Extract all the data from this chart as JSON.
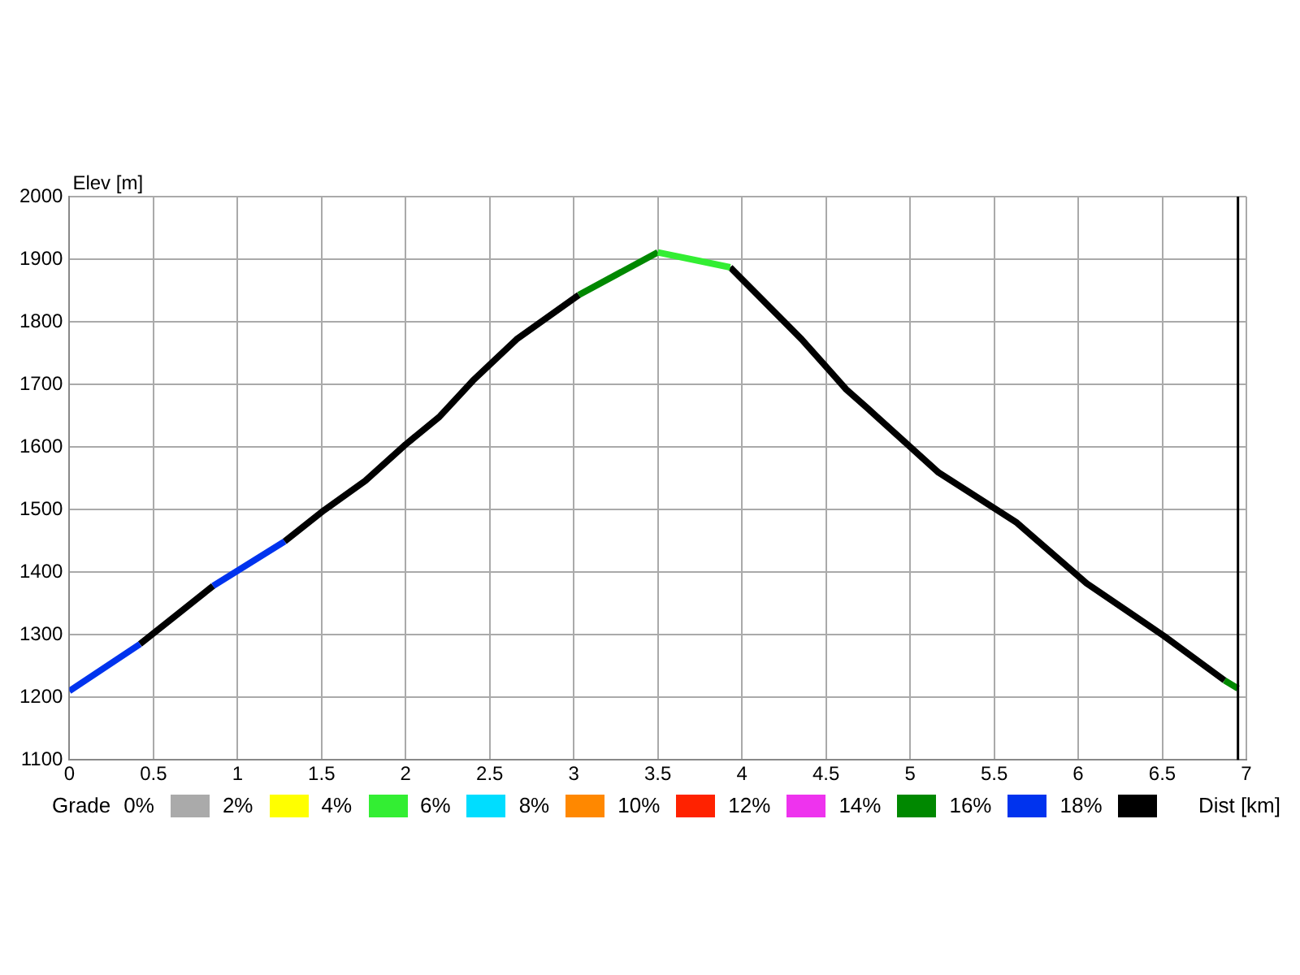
{
  "chart_data": {
    "type": "line",
    "xlabel": "Dist [km]",
    "ylabel": "Elev [m]",
    "legend_title": "Grade",
    "xlim": [
      0,
      7
    ],
    "xticks": [
      0,
      0.5,
      1,
      1.5,
      2,
      2.5,
      3,
      3.5,
      4,
      4.5,
      5,
      5.5,
      6,
      6.5,
      7
    ],
    "ylim": [
      1100,
      2000
    ],
    "yticks": [
      1100,
      1200,
      1300,
      1400,
      1500,
      1600,
      1700,
      1800,
      1900,
      2000
    ],
    "grid": true,
    "legend": "bottom",
    "marker": "none",
    "line_style": "solid",
    "ref_lines": [
      {
        "axis": "x",
        "value": 6.95,
        "color": "#000000"
      }
    ],
    "series": [
      {
        "name": "0%",
        "color": "#aaaaaa"
      },
      {
        "name": "2%",
        "color": "#ffff00"
      },
      {
        "name": "4%",
        "color": "#33ee33",
        "x": [
          3.5,
          3.93
        ],
        "values": [
          1911,
          1887
        ]
      },
      {
        "name": "6%",
        "color": "#00ddff"
      },
      {
        "name": "8%",
        "color": "#ff8800"
      },
      {
        "name": "10%",
        "color": "#ff2200"
      },
      {
        "name": "12%",
        "color": "#ee33ee"
      },
      {
        "name": "14%",
        "color": "#008800",
        "x": [
          3.03,
          3.5,
          4.5,
          6.87,
          6.95
        ],
        "values": [
          1843,
          1911,
          null,
          1227,
          1214
        ]
      },
      {
        "name": "16%",
        "color": "#0033ee",
        "x": [
          0,
          0.42,
          0.64,
          0.855,
          1.28
        ],
        "values": [
          1210,
          1285,
          null,
          1378,
          1449
        ]
      },
      {
        "name": "18%",
        "color": "#000000",
        "x": [
          0.42,
          0.855,
          1.1,
          1.28,
          1.515,
          1.76,
          2.0,
          2.2,
          2.4,
          2.66,
          3.03,
          3.5,
          3.93,
          4.355,
          4.62,
          4.75,
          5.17,
          5.63,
          6.05,
          6.51,
          6.87
        ],
        "values": [
          1285,
          1378,
          null,
          1449,
          1499,
          1546,
          1604,
          1648,
          1706,
          1772,
          1843,
          null,
          1887,
          1772,
          1692,
          1661,
          1559,
          1480,
          1382,
          1298,
          1227
        ]
      }
    ]
  }
}
